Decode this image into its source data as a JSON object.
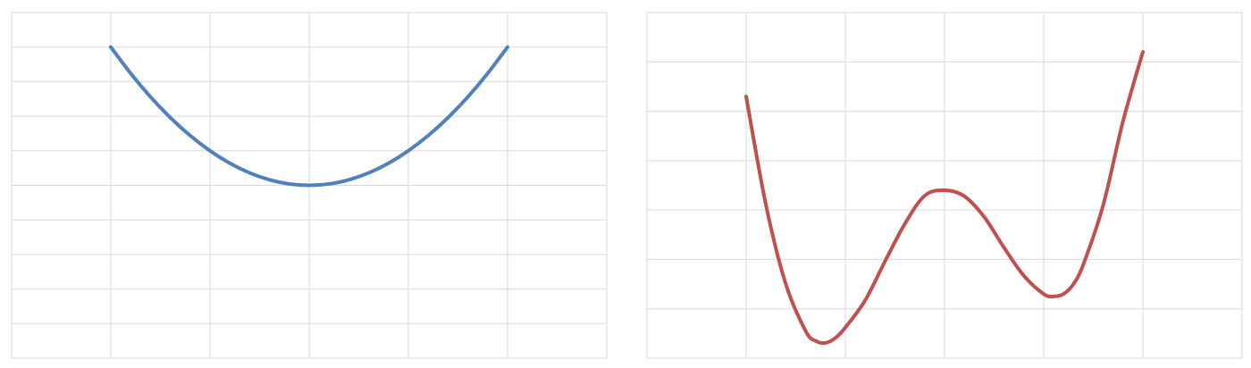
{
  "chart_data": [
    {
      "type": "line",
      "title": "",
      "xlabel": "",
      "ylabel": "",
      "xlim": [
        -3,
        3
      ],
      "ylim": [
        0,
        10
      ],
      "x_gridlines": [
        -2,
        -1,
        0,
        1,
        2
      ],
      "y_gridlines": [
        1,
        2,
        3,
        4,
        5,
        6,
        7,
        8,
        9
      ],
      "grid": true,
      "legend": "none",
      "series": [
        {
          "color": "#4f81bd",
          "x": [
            -2,
            -1.8,
            -1.6,
            -1.4,
            -1.2,
            -1,
            -0.8,
            -0.6,
            -0.4,
            -0.2,
            0,
            0.2,
            0.4,
            0.6,
            0.8,
            1,
            1.2,
            1.4,
            1.6,
            1.8,
            2
          ],
          "y": [
            9,
            8.24,
            7.56,
            6.96,
            6.44,
            6,
            5.64,
            5.36,
            5.16,
            5.04,
            5,
            5.04,
            5.16,
            5.36,
            5.64,
            6,
            6.44,
            6.96,
            7.56,
            8.24,
            9
          ]
        }
      ]
    },
    {
      "type": "line",
      "title": "",
      "xlabel": "",
      "ylabel": "",
      "xlim": [
        -3,
        3
      ],
      "ylim": [
        -3,
        4
      ],
      "x_gridlines": [
        -2,
        -1,
        0,
        1,
        2
      ],
      "y_gridlines": [
        -2,
        -1,
        0,
        1,
        2,
        3
      ],
      "grid": true,
      "legend": "none",
      "series": [
        {
          "color": "#c0504d",
          "x": [
            -2,
            -1.8,
            -1.6,
            -1.4,
            -1.3,
            -1.2,
            -1.1,
            -1,
            -0.8,
            -0.6,
            -0.4,
            -0.2,
            0,
            0.2,
            0.4,
            0.6,
            0.8,
            1,
            1.1,
            1.2,
            1.3,
            1.4,
            1.6,
            1.8,
            2
          ],
          "y": [
            2.3,
            0.1,
            -1.5,
            -2.45,
            -2.65,
            -2.69,
            -2.59,
            -2.38,
            -1.83,
            -1.04,
            -0.28,
            0.29,
            0.4,
            0.28,
            -0.14,
            -0.76,
            -1.33,
            -1.7,
            -1.75,
            -1.7,
            -1.5,
            -1.1,
            0.1,
            1.8,
            3.2
          ]
        }
      ]
    }
  ]
}
